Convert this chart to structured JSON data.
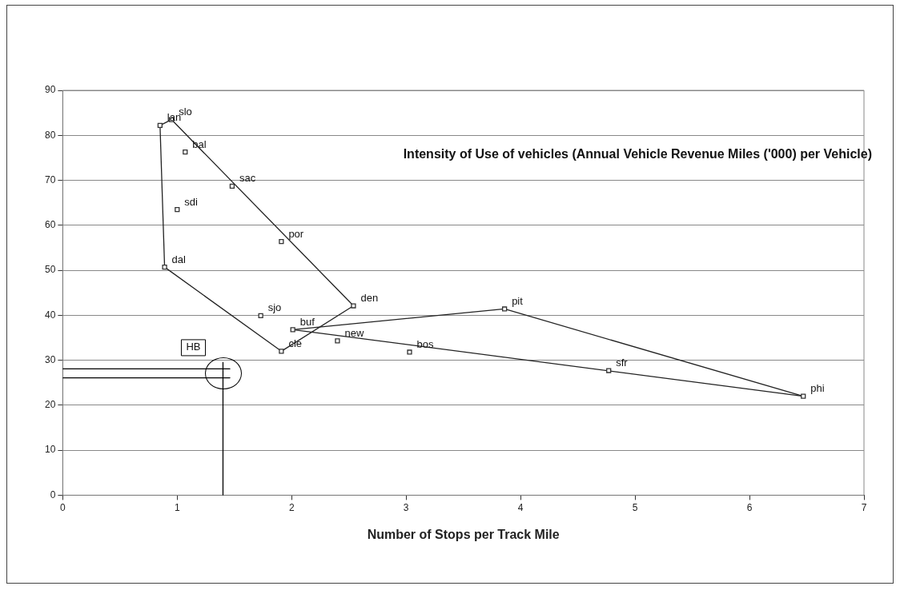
{
  "chart_data": {
    "type": "scatter",
    "title": "Intensity of Use of vehicles (Annual Vehicle Revenue Miles ('000) per Vehicle)",
    "xlabel": "Number of Stops per Track Mile",
    "xlim": [
      0,
      7
    ],
    "xticks": [
      0,
      1,
      2,
      3,
      4,
      5,
      6,
      7
    ],
    "ylim": [
      0,
      90
    ],
    "yticks": [
      0,
      10,
      20,
      30,
      40,
      50,
      60,
      70,
      80,
      90
    ],
    "grid": "y",
    "legend": false,
    "marker": "square",
    "series": [
      {
        "color": "#333333",
        "x": [
          0.85,
          0.95,
          1.07,
          1.48,
          1.0,
          1.91,
          0.89,
          1.73,
          2.54,
          2.01,
          1.91,
          2.4,
          3.03,
          3.86,
          4.77,
          6.47
        ],
        "values": [
          82.2,
          83.5,
          76.3,
          68.7,
          63.5,
          56.4,
          50.7,
          39.9,
          42.1,
          36.8,
          32.0,
          34.3,
          31.8,
          41.4,
          27.7,
          22.0
        ]
      },
      {
        "type": "line",
        "color": "#222222",
        "marker": "none",
        "x": [
          0.85,
          0.95
        ],
        "values": [
          82.2,
          83.5
        ]
      },
      {
        "type": "line",
        "color": "#222222",
        "marker": "none",
        "x": [
          0.95,
          2.54
        ],
        "values": [
          83.5,
          42.1
        ]
      },
      {
        "type": "line",
        "color": "#222222",
        "marker": "none",
        "x": [
          1.91,
          2.54
        ],
        "values": [
          32.0,
          42.1
        ]
      },
      {
        "type": "line",
        "color": "#222222",
        "marker": "none",
        "x": [
          0.89,
          1.91
        ],
        "values": [
          50.7,
          32.0
        ]
      },
      {
        "type": "line",
        "color": "#222222",
        "marker": "none",
        "x": [
          0.85,
          0.89
        ],
        "values": [
          82.2,
          50.7
        ]
      },
      {
        "type": "line",
        "color": "#222222",
        "marker": "none",
        "x": [
          2.01,
          3.86
        ],
        "values": [
          36.8,
          41.4
        ]
      },
      {
        "type": "line",
        "color": "#222222",
        "marker": "none",
        "x": [
          3.86,
          6.47
        ],
        "values": [
          41.4,
          22.0
        ]
      },
      {
        "type": "line",
        "color": "#222222",
        "marker": "none",
        "x": [
          2.01,
          6.47
        ],
        "values": [
          36.8,
          22.0
        ]
      },
      {
        "type": "line",
        "color": "#000000",
        "marker": "none",
        "x": [
          0,
          1.46
        ],
        "values": [
          28.1,
          28.1
        ]
      },
      {
        "type": "line",
        "color": "#000000",
        "marker": "none",
        "x": [
          0,
          1.46
        ],
        "values": [
          26.1,
          26.1
        ]
      },
      {
        "type": "line",
        "color": "#000000",
        "marker": "none",
        "x": [
          1.4,
          1.4
        ],
        "values": [
          0,
          29.5
        ]
      }
    ],
    "annotations": [
      {
        "text": "lan",
        "x": 0.85,
        "y": 82.2
      },
      {
        "text": "slo",
        "x": 0.95,
        "y": 83.5
      },
      {
        "text": "bal",
        "x": 1.07,
        "y": 76.3
      },
      {
        "text": "sac",
        "x": 1.48,
        "y": 68.7
      },
      {
        "text": "sdi",
        "x": 1.0,
        "y": 63.5
      },
      {
        "text": "por",
        "x": 1.91,
        "y": 56.4
      },
      {
        "text": "dal",
        "x": 0.89,
        "y": 50.7
      },
      {
        "text": "sjo",
        "x": 1.73,
        "y": 39.9
      },
      {
        "text": "den",
        "x": 2.54,
        "y": 42.1
      },
      {
        "text": "buf",
        "x": 2.01,
        "y": 36.8
      },
      {
        "text": "cle",
        "x": 1.91,
        "y": 32.0
      },
      {
        "text": "new",
        "x": 2.4,
        "y": 34.3
      },
      {
        "text": "bos",
        "x": 3.03,
        "y": 31.8
      },
      {
        "text": "pit",
        "x": 3.86,
        "y": 41.4
      },
      {
        "text": "sfr",
        "x": 4.77,
        "y": 27.7
      },
      {
        "text": "phi",
        "x": 6.47,
        "y": 22.0
      },
      "HB"
    ]
  }
}
